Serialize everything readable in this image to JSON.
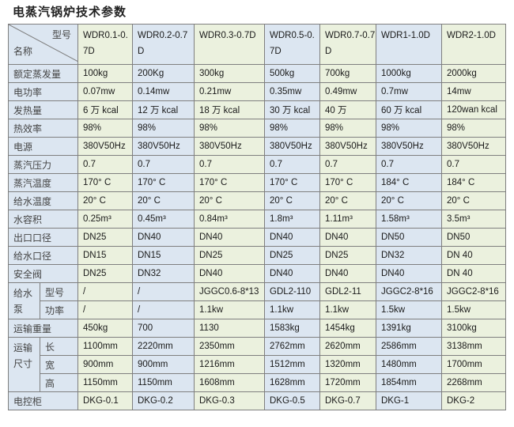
{
  "title": "电蒸汽锅炉技术参数",
  "header": {
    "corner_top": "型号",
    "corner_bottom": "名称",
    "models": [
      "WDR0.1-0.7D",
      "WDR0.2-0.7D",
      "WDR0.3-0.7D",
      "WDR0.5-0.7D",
      "WDR0.7-0.7D",
      "WDR1-1.0D",
      "WDR2-1.0D"
    ]
  },
  "rows": [
    {
      "label": "额定蒸发量",
      "values": [
        "100kg",
        "200Kg",
        "300kg",
        "500kg",
        "700kg",
        "1000kg",
        "2000kg"
      ]
    },
    {
      "label": "电功率",
      "values": [
        "0.07mw",
        "0.14mw",
        "0.21mw",
        "0.35mw",
        "0.49mw",
        "0.7mw",
        "14mw"
      ]
    },
    {
      "label": "发热量",
      "values": [
        "6 万 kcal",
        "12 万 kcal",
        "18 万 kcal",
        "30 万 kcal",
        "40 万",
        "60 万 kcal",
        "120wan kcal"
      ]
    },
    {
      "label": "热效率",
      "values": [
        "98%",
        "98%",
        "98%",
        "98%",
        "98%",
        "98%",
        "98%"
      ]
    },
    {
      "label": "电源",
      "values": [
        "380V50Hz",
        "380V50Hz",
        "380V50Hz",
        "380V50Hz",
        "380V50Hz",
        "380V50Hz",
        "380V50Hz"
      ]
    },
    {
      "label": "蒸汽压力",
      "values": [
        "0.7",
        "0.7",
        "0.7",
        "0.7",
        "0.7",
        "0.7",
        "0.7"
      ]
    },
    {
      "label": "蒸汽温度",
      "values": [
        "170° C",
        "170° C",
        "170° C",
        "170° C",
        "170° C",
        "184° C",
        "184° C"
      ]
    },
    {
      "label": "给水温度",
      "values": [
        "20° C",
        "20° C",
        "20° C",
        "20° C",
        "20° C",
        "20° C",
        "20° C"
      ]
    },
    {
      "label": "水容积",
      "values": [
        "0.25m³",
        "0.45m³",
        "0.84m³",
        "1.8m³",
        "1.11m³",
        "1.58m³",
        "3.5m³"
      ]
    },
    {
      "label": "出口口径",
      "values": [
        "DN25",
        "DN40",
        "DN40",
        "DN40",
        "DN40",
        "DN50",
        "DN50"
      ]
    },
    {
      "label": "给水口径",
      "values": [
        "DN15",
        "DN15",
        "DN25",
        "DN25",
        "DN25",
        "DN32",
        "DN 40"
      ]
    },
    {
      "label": "安全阀",
      "values": [
        "DN25",
        "DN32",
        "DN40",
        "DN40",
        "DN40",
        "DN40",
        "DN 40"
      ]
    },
    {
      "group": "给水泵",
      "label": "型号",
      "values": [
        "/",
        "/",
        "JGGC0.6-8*13",
        "GDL2-110",
        "GDL2-11",
        "JGGC2-8*16",
        "JGGC2-8*16"
      ]
    },
    {
      "label": "功率",
      "values": [
        "/",
        "/",
        "1.1kw",
        "1.1kw",
        "1.1kw",
        "1.5kw",
        "1.5kw"
      ]
    },
    {
      "label": "运输重量",
      "values": [
        "450kg",
        "700",
        "1130",
        "1583kg",
        "1454kg",
        "1391kg",
        "3100kg"
      ]
    },
    {
      "group": "运输尺寸",
      "label": "长",
      "values": [
        "1100mm",
        "2220mm",
        "2350mm",
        "2762mm",
        "2620mm",
        "2586mm",
        "3138mm"
      ]
    },
    {
      "label": "宽",
      "values": [
        "900mm",
        "900mm",
        "1216mm",
        "1512mm",
        "1320mm",
        "1480mm",
        "1700mm"
      ]
    },
    {
      "label": "高",
      "values": [
        "1150mm",
        "1150mm",
        "1608mm",
        "1628mm",
        "1720mm",
        "1854mm",
        "2268mm"
      ]
    },
    {
      "label": "电控柜",
      "values": [
        "DKG-0.1",
        "DKG-0.2",
        "DKG-0.3",
        "DKG-0.5",
        "DKG-0.7",
        "DKG-1",
        "DKG-2"
      ]
    }
  ],
  "colors": {
    "label_bg": "#dce6f1",
    "odd_bg": "#ebf1de",
    "even_bg": "#dce6f1",
    "border": "#7f7f7f"
  }
}
